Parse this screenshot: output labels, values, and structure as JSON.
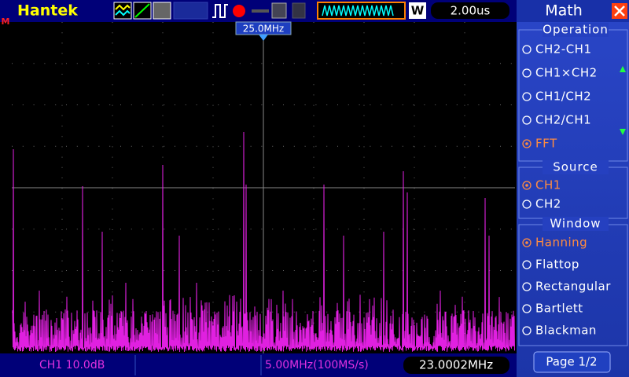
{
  "header": {
    "brand": "Hantek",
    "mode_letter": "W",
    "timebase": "2.00us"
  },
  "trigger_marker": "M",
  "cursor_label": "25.0MHz",
  "menu": {
    "title": "Math",
    "groups": [
      {
        "title": "Operation",
        "options": [
          "CH2-CH1",
          "CH1×CH2",
          "CH1/CH2",
          "CH2/CH1",
          "FFT"
        ],
        "selected": 4
      },
      {
        "title": "Source",
        "options": [
          "CH1",
          "CH2"
        ],
        "selected": 0
      },
      {
        "title": "Window",
        "options": [
          "Hanning",
          "Flattop",
          "Rectangular",
          "Bartlett",
          "Blackman"
        ],
        "selected": 0
      }
    ],
    "page": "Page 1/2"
  },
  "status": {
    "channel": "CH1 10.0dB",
    "span": "5.00MHz(100MS/s)",
    "frequency": "23.0002MHz"
  }
}
